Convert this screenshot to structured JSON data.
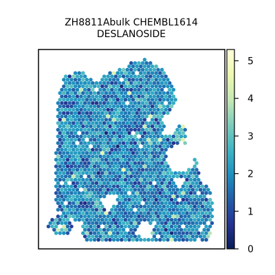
{
  "chart_data": {
    "type": "heatmap",
    "title_lines": [
      "ZH8811Abulk CHEMBL1614",
      "DESLANOSIDE"
    ],
    "xlabel": "",
    "ylabel": "",
    "colorbar": {
      "colormap": "YlGnBu",
      "range": [
        0,
        5.3
      ],
      "ticks": [
        "0",
        "1",
        "2",
        "3",
        "4",
        "5"
      ]
    },
    "values_summary": {
      "typical_range": [
        1,
        3
      ],
      "max_observed": 5.3,
      "min_observed": 0
    },
    "grid": false
  }
}
